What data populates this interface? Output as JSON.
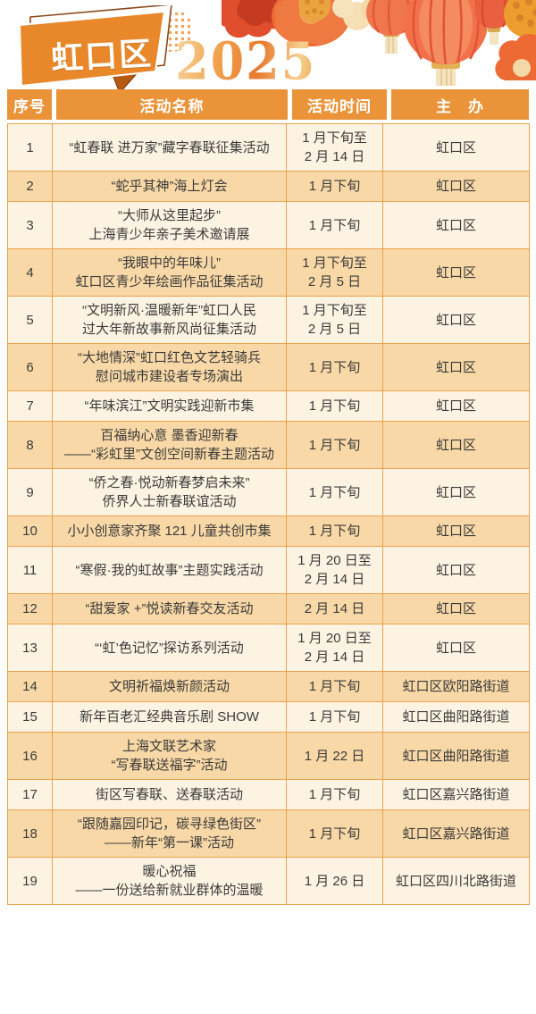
{
  "district_badge": "虹口区",
  "year": "2025",
  "colors": {
    "header_orange": "#ea9339",
    "banner_orange": "#e8882a",
    "banner_fold": "#b55a12",
    "row_light": "#fdf3e2",
    "row_dark": "#f8d8a6",
    "grid_border": "#eba24e",
    "lantern_red": "#f2714b",
    "gold": "#e9a440"
  },
  "icons": {
    "lantern": "lantern-icon",
    "flower": "flower-icon",
    "cloud": "cloud-icon",
    "halftone": "halftone-dots-icon"
  },
  "table": {
    "headers": [
      "序号",
      "活动名称",
      "活动时间",
      "主　办"
    ],
    "rows": [
      {
        "no": "1",
        "name": [
          "“虹春联 进万家”藏字春联征集活动"
        ],
        "time": [
          "1 月下旬至",
          "2 月 14 日"
        ],
        "org": "虹口区"
      },
      {
        "no": "2",
        "name": [
          "“蛇乎其神”海上灯会"
        ],
        "time": [
          "1 月下旬"
        ],
        "org": "虹口区"
      },
      {
        "no": "3",
        "name": [
          "“大师从这里起步”",
          "上海青少年亲子美术邀请展"
        ],
        "time": [
          "1 月下旬"
        ],
        "org": "虹口区"
      },
      {
        "no": "4",
        "name": [
          "“我眼中的年味儿”",
          "虹口区青少年绘画作品征集活动"
        ],
        "time": [
          "1 月下旬至",
          "2 月 5 日"
        ],
        "org": "虹口区"
      },
      {
        "no": "5",
        "name": [
          "“文明新风·温暖新年”虹口人民",
          "过大年新故事新风尚征集活动"
        ],
        "time": [
          "1 月下旬至",
          "2 月 5 日"
        ],
        "org": "虹口区"
      },
      {
        "no": "6",
        "name": [
          "“大地情深”虹口红色文艺轻骑兵",
          "慰问城市建设者专场演出"
        ],
        "time": [
          "1 月下旬"
        ],
        "org": "虹口区"
      },
      {
        "no": "7",
        "name": [
          "“年味滨江”文明实践迎新市集"
        ],
        "time": [
          "1 月下旬"
        ],
        "org": "虹口区"
      },
      {
        "no": "8",
        "name": [
          "百福纳心意 墨香迎新春",
          "——“彩虹里”文创空间新春主题活动"
        ],
        "time": [
          "1 月下旬"
        ],
        "org": "虹口区"
      },
      {
        "no": "9",
        "name": [
          "“侨之春·悦动新春梦启未来”",
          "侨界人士新春联谊活动"
        ],
        "time": [
          "1 月下旬"
        ],
        "org": "虹口区"
      },
      {
        "no": "10",
        "name": [
          "小小创意家齐聚 121 儿童共创市集"
        ],
        "time": [
          "1 月下旬"
        ],
        "org": "虹口区"
      },
      {
        "no": "11",
        "name": [
          "“寒假·我的虹故事”主题实践活动"
        ],
        "time": [
          "1 月 20 日至",
          "2 月 14 日"
        ],
        "org": "虹口区"
      },
      {
        "no": "12",
        "name": [
          "“甜爱家 +”悦读新春交友活动"
        ],
        "time": [
          "2 月 14 日"
        ],
        "org": "虹口区"
      },
      {
        "no": "13",
        "name": [
          "“‘虹’色记忆”探访系列活动"
        ],
        "time": [
          "1 月 20 日至",
          "2 月 14 日"
        ],
        "org": "虹口区"
      },
      {
        "no": "14",
        "name": [
          "文明祈福焕新颜活动"
        ],
        "time": [
          "1 月下旬"
        ],
        "org": "虹口区欧阳路街道"
      },
      {
        "no": "15",
        "name": [
          "新年百老汇经典音乐剧 SHOW"
        ],
        "time": [
          "1 月下旬"
        ],
        "org": "虹口区曲阳路街道"
      },
      {
        "no": "16",
        "name": [
          "上海文联艺术家",
          "“写春联送福字”活动"
        ],
        "time": [
          "1 月 22 日"
        ],
        "org": "虹口区曲阳路街道"
      },
      {
        "no": "17",
        "name": [
          "街区写春联、送春联活动"
        ],
        "time": [
          "1 月下旬"
        ],
        "org": "虹口区嘉兴路街道"
      },
      {
        "no": "18",
        "name": [
          "“跟随嘉园印记，碳寻绿色街区”",
          "——新年“第一课”活动"
        ],
        "time": [
          "1 月下旬"
        ],
        "org": "虹口区嘉兴路街道"
      },
      {
        "no": "19",
        "name": [
          "暖心祝福",
          "——一份送给新就业群体的温暖"
        ],
        "time": [
          "1 月 26 日"
        ],
        "org": "虹口区四川北路街道"
      }
    ]
  }
}
